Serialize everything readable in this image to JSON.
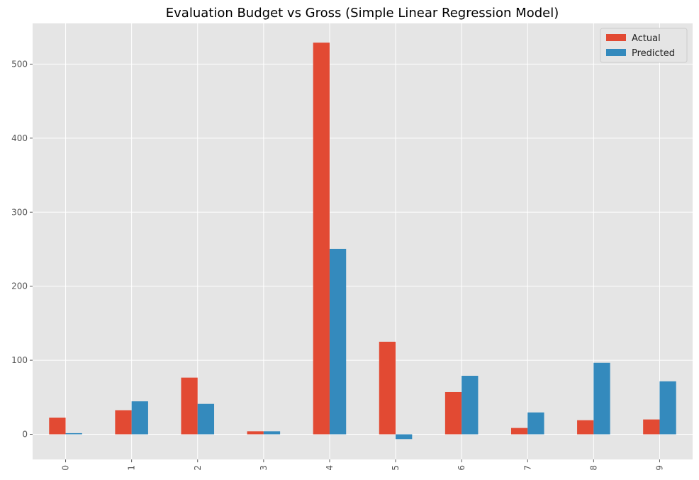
{
  "chart_data": {
    "type": "bar",
    "title": "Evaluation Budget vs Gross (Simple Linear Regression Model)",
    "xlabel": "",
    "ylabel": "",
    "categories": [
      "0",
      "1",
      "2",
      "3",
      "4",
      "5",
      "6",
      "7",
      "8",
      "9"
    ],
    "series": [
      {
        "name": "Actual",
        "color": "#E24A33",
        "values": [
          22.5,
          32.5,
          76.5,
          4,
          529,
          125,
          57,
          8.5,
          19,
          20
        ]
      },
      {
        "name": "Predicted",
        "color": "#348ABD",
        "values": [
          1.5,
          44.5,
          41,
          4,
          250.5,
          -6.5,
          79,
          29.5,
          96.5,
          71.5
        ]
      }
    ],
    "ylim": [
      -34,
      555
    ],
    "yticks": [
      0,
      100,
      200,
      300,
      400,
      500
    ],
    "ytick_labels": [
      "0",
      "100",
      "200",
      "300",
      "400",
      "500"
    ],
    "grid": true,
    "legend_position": "top-right",
    "plot_background": "#E5E5E5",
    "grid_color": "#FFFFFF"
  }
}
